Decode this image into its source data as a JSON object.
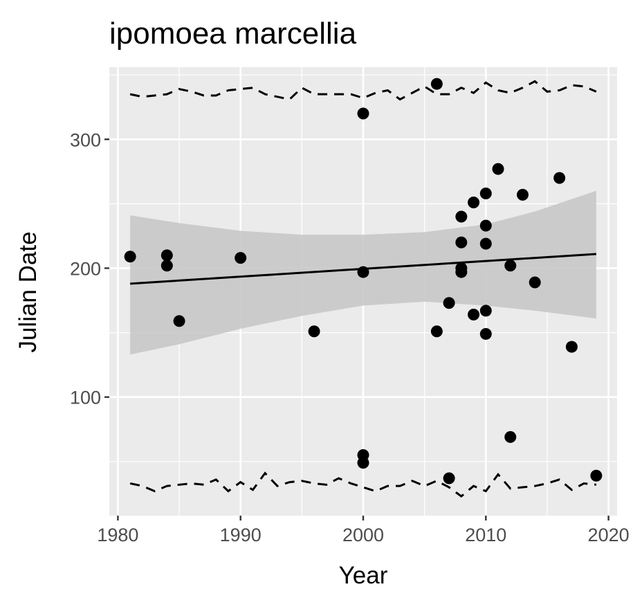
{
  "chart_data": {
    "type": "scatter",
    "title": "ipomoea marcellia",
    "xlabel": "Year",
    "ylabel": "Julian Date",
    "xlim": [
      1979.3,
      2020.7
    ],
    "ylim": [
      8,
      356
    ],
    "x_ticks": [
      1980,
      1990,
      2000,
      2010,
      2020
    ],
    "y_ticks": [
      100,
      200,
      300
    ],
    "grid": true,
    "legend": "none",
    "colors": {
      "panel": "#ebebeb",
      "grid_major": "#ffffff",
      "points": "#000000",
      "ribbon": "#c8c8c8",
      "tick": "#333333"
    },
    "points": [
      {
        "x": 1981,
        "y": 209
      },
      {
        "x": 1984,
        "y": 210
      },
      {
        "x": 1984,
        "y": 202
      },
      {
        "x": 1985,
        "y": 159
      },
      {
        "x": 1990,
        "y": 208
      },
      {
        "x": 1996,
        "y": 151
      },
      {
        "x": 2000,
        "y": 320
      },
      {
        "x": 2000,
        "y": 197
      },
      {
        "x": 2000,
        "y": 55
      },
      {
        "x": 2000,
        "y": 49
      },
      {
        "x": 2006,
        "y": 343
      },
      {
        "x": 2006,
        "y": 151
      },
      {
        "x": 2007,
        "y": 173
      },
      {
        "x": 2007,
        "y": 37
      },
      {
        "x": 2008,
        "y": 240
      },
      {
        "x": 2008,
        "y": 220
      },
      {
        "x": 2008,
        "y": 200
      },
      {
        "x": 2008,
        "y": 197
      },
      {
        "x": 2009,
        "y": 251
      },
      {
        "x": 2009,
        "y": 164
      },
      {
        "x": 2010,
        "y": 258
      },
      {
        "x": 2010,
        "y": 233
      },
      {
        "x": 2010,
        "y": 219
      },
      {
        "x": 2010,
        "y": 167
      },
      {
        "x": 2010,
        "y": 149
      },
      {
        "x": 2011,
        "y": 277
      },
      {
        "x": 2012,
        "y": 202
      },
      {
        "x": 2012,
        "y": 69
      },
      {
        "x": 2013,
        "y": 257
      },
      {
        "x": 2014,
        "y": 189
      },
      {
        "x": 2016,
        "y": 270
      },
      {
        "x": 2017,
        "y": 139
      },
      {
        "x": 2019,
        "y": 39
      }
    ],
    "trend_line": {
      "x": [
        1981,
        2019
      ],
      "y": [
        188,
        211
      ]
    },
    "confidence_band": {
      "x": [
        1981,
        1985,
        1990,
        1995,
        2000,
        2005,
        2010,
        2014,
        2019
      ],
      "upper": [
        241,
        235,
        229,
        226,
        226,
        228,
        234,
        244,
        260
      ],
      "lower": [
        133,
        141,
        153,
        163,
        171,
        174,
        171,
        167,
        161
      ]
    },
    "upper_dashed": {
      "x": [
        1981,
        1982,
        1984,
        1985,
        1986,
        1987,
        1988,
        1989,
        1990,
        1991,
        1992,
        1993,
        1994,
        1995,
        1996,
        1997,
        1998,
        1999,
        2000,
        2001,
        2002,
        2003,
        2004,
        2005,
        2006,
        2007,
        2008,
        2009,
        2010,
        2011,
        2012,
        2013,
        2014,
        2015,
        2016,
        2017,
        2018,
        2019
      ],
      "y": [
        335,
        333,
        335,
        339,
        337,
        334,
        334,
        338,
        339,
        340,
        335,
        333,
        331,
        340,
        335,
        335,
        335,
        335,
        332,
        336,
        338,
        331,
        336,
        341,
        335,
        335,
        340,
        336,
        344,
        338,
        336,
        340,
        345,
        337,
        338,
        342,
        341,
        337
      ]
    },
    "lower_dashed": {
      "x": [
        1981,
        1982,
        1983,
        1984,
        1985,
        1986,
        1987,
        1988,
        1989,
        1990,
        1991,
        1992,
        1993,
        1994,
        1995,
        1996,
        1997,
        1998,
        1999,
        2000,
        2001,
        2002,
        2003,
        2004,
        2005,
        2006,
        2007,
        2008,
        2009,
        2010,
        2011,
        2012,
        2013,
        2014,
        2015,
        2016,
        2017,
        2018,
        2019
      ],
      "y": [
        33,
        31,
        27,
        31,
        32,
        33,
        32,
        36,
        27,
        34,
        28,
        41,
        31,
        34,
        35,
        33,
        32,
        37,
        33,
        30,
        27,
        31,
        31,
        35,
        31,
        35,
        30,
        23,
        31,
        27,
        40,
        29,
        30,
        31,
        33,
        36,
        28,
        33,
        32
      ]
    }
  }
}
